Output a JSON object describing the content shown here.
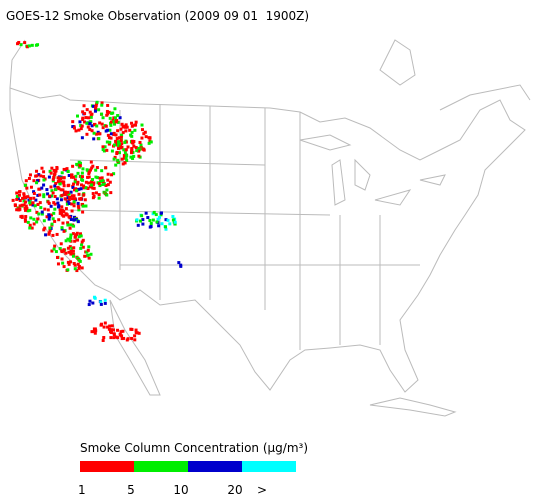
{
  "title": "GOES-12 Smoke Observation (2009 09 01  1900Z)",
  "legend": {
    "title": "Smoke Column Concentration (μg/m³)",
    "colors": [
      "#ff0000",
      "#00ee00",
      "#0000cc",
      "#00ffff"
    ],
    "labels": [
      "1",
      "5",
      "10",
      "20",
      ">"
    ]
  }
}
